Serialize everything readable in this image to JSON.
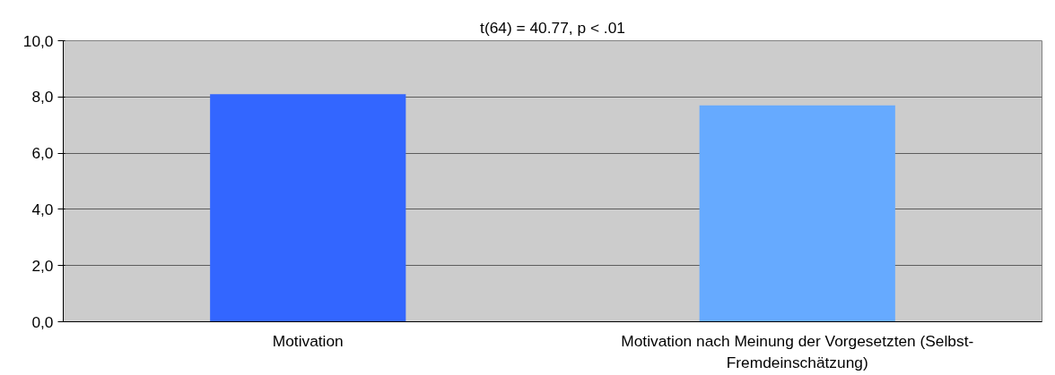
{
  "chart_data": {
    "type": "bar",
    "categories": [
      "Motivation",
      "Motivation nach Meinung der Vorgesetzten (Selbst-Fremdeinschätzung)"
    ],
    "values": [
      8.1,
      7.7
    ],
    "colors": [
      "#3366ff",
      "#66aaff"
    ],
    "ylim": [
      0,
      10
    ],
    "yticks": [
      {
        "value": 0,
        "label": "0,0"
      },
      {
        "value": 2,
        "label": "2,0"
      },
      {
        "value": 4,
        "label": "4,0"
      },
      {
        "value": 6,
        "label": "6,0"
      },
      {
        "value": 8,
        "label": "8,0"
      },
      {
        "value": 10,
        "label": "10,0"
      }
    ],
    "grid": "y",
    "annotations": [
      "t(64) = 40.77, p < .01"
    ]
  }
}
